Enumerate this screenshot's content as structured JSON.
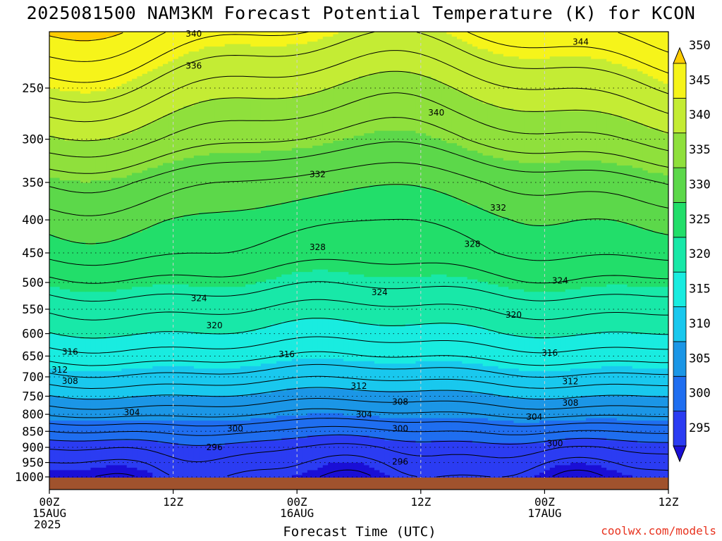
{
  "colors": {
    "fills": [
      "#1a0fd6",
      "#2b3cf2",
      "#1f6ef0",
      "#1b96e6",
      "#19c8ee",
      "#19ece0",
      "#18e8a8",
      "#22de6a",
      "#5cd84a",
      "#8fe03c",
      "#c4ec34",
      "#f6f41a",
      "#ffcc00"
    ],
    "ground": "#a0522d",
    "label": "#e8321e"
  },
  "chart_data": {
    "type": "contour",
    "title": "2025081500 NAM3KM Forecast Potential Temperature (K) for KCON",
    "xlabel": "Forecast Time (UTC)",
    "ylabel": "",
    "credit": "coolwx.com/models",
    "x_ticks": [
      {
        "hour": 0,
        "line1": "00Z",
        "line2": "15AUG",
        "line3": "2025"
      },
      {
        "hour": 12,
        "line1": "12Z",
        "line2": "",
        "line3": ""
      },
      {
        "hour": 24,
        "line1": "00Z",
        "line2": "16AUG",
        "line3": ""
      },
      {
        "hour": 36,
        "line1": "12Z",
        "line2": "",
        "line3": ""
      },
      {
        "hour": 48,
        "line1": "00Z",
        "line2": "17AUG",
        "line3": ""
      },
      {
        "hour": 60,
        "line1": "12Z",
        "line2": "",
        "line3": ""
      }
    ],
    "xlim_hours": [
      0,
      60
    ],
    "y_ticks": [
      250,
      300,
      350,
      400,
      450,
      500,
      550,
      600,
      650,
      700,
      750,
      800,
      850,
      900,
      950,
      1000
    ],
    "ylim_hPa": [
      200,
      1030
    ],
    "y_scale": "log",
    "colorbar": {
      "levels": [
        295,
        300,
        305,
        310,
        315,
        320,
        325,
        330,
        335,
        340,
        345,
        350
      ],
      "labels": [
        "295",
        "300",
        "305",
        "310",
        "315",
        "320",
        "325",
        "330",
        "335",
        "340",
        "345",
        "350"
      ],
      "extend": "both"
    },
    "theta_profile": [
      {
        "p": 200,
        "theta": 349
      },
      {
        "p": 250,
        "theta": 343
      },
      {
        "p": 300,
        "theta": 338
      },
      {
        "p": 350,
        "theta": 333
      },
      {
        "p": 400,
        "theta": 330
      },
      {
        "p": 450,
        "theta": 328
      },
      {
        "p": 500,
        "theta": 325
      },
      {
        "p": 550,
        "theta": 322
      },
      {
        "p": 600,
        "theta": 319.5
      },
      {
        "p": 650,
        "theta": 316.5
      },
      {
        "p": 700,
        "theta": 313
      },
      {
        "p": 750,
        "theta": 309.5
      },
      {
        "p": 800,
        "theta": 306
      },
      {
        "p": 850,
        "theta": 302
      },
      {
        "p": 900,
        "theta": 298.5
      },
      {
        "p": 950,
        "theta": 296.5
      },
      {
        "p": 1000,
        "theta": 295
      }
    ],
    "contour_interval_K": 2,
    "contour_labels": [
      {
        "value": "344",
        "hour": 51.5,
        "p": 212
      },
      {
        "value": "340",
        "hour": 14,
        "p": 206
      },
      {
        "value": "340",
        "hour": 37.5,
        "p": 273
      },
      {
        "value": "336",
        "hour": 14,
        "p": 231
      },
      {
        "value": "332",
        "hour": 26,
        "p": 340
      },
      {
        "value": "332",
        "hour": 43.5,
        "p": 383
      },
      {
        "value": "328",
        "hour": 26,
        "p": 441
      },
      {
        "value": "328",
        "hour": 41,
        "p": 436
      },
      {
        "value": "324",
        "hour": 14.5,
        "p": 529
      },
      {
        "value": "324",
        "hour": 32,
        "p": 518
      },
      {
        "value": "324",
        "hour": 49.5,
        "p": 497
      },
      {
        "value": "320",
        "hour": 16,
        "p": 583
      },
      {
        "value": "320",
        "hour": 45,
        "p": 561
      },
      {
        "value": "316",
        "hour": 2,
        "p": 640
      },
      {
        "value": "316",
        "hour": 23,
        "p": 646
      },
      {
        "value": "316",
        "hour": 48.5,
        "p": 643
      },
      {
        "value": "312",
        "hour": 1,
        "p": 683
      },
      {
        "value": "312",
        "hour": 30,
        "p": 723
      },
      {
        "value": "312",
        "hour": 50.5,
        "p": 712
      },
      {
        "value": "308",
        "hour": 2,
        "p": 711
      },
      {
        "value": "308",
        "hour": 34,
        "p": 765
      },
      {
        "value": "308",
        "hour": 50.5,
        "p": 768
      },
      {
        "value": "304",
        "hour": 8,
        "p": 795
      },
      {
        "value": "304",
        "hour": 30.5,
        "p": 801
      },
      {
        "value": "304",
        "hour": 47,
        "p": 808
      },
      {
        "value": "300",
        "hour": 18,
        "p": 842
      },
      {
        "value": "300",
        "hour": 34,
        "p": 842
      },
      {
        "value": "300",
        "hour": 49,
        "p": 887
      },
      {
        "value": "296",
        "hour": 16,
        "p": 900
      },
      {
        "value": "296",
        "hour": 34,
        "p": 947
      }
    ]
  }
}
